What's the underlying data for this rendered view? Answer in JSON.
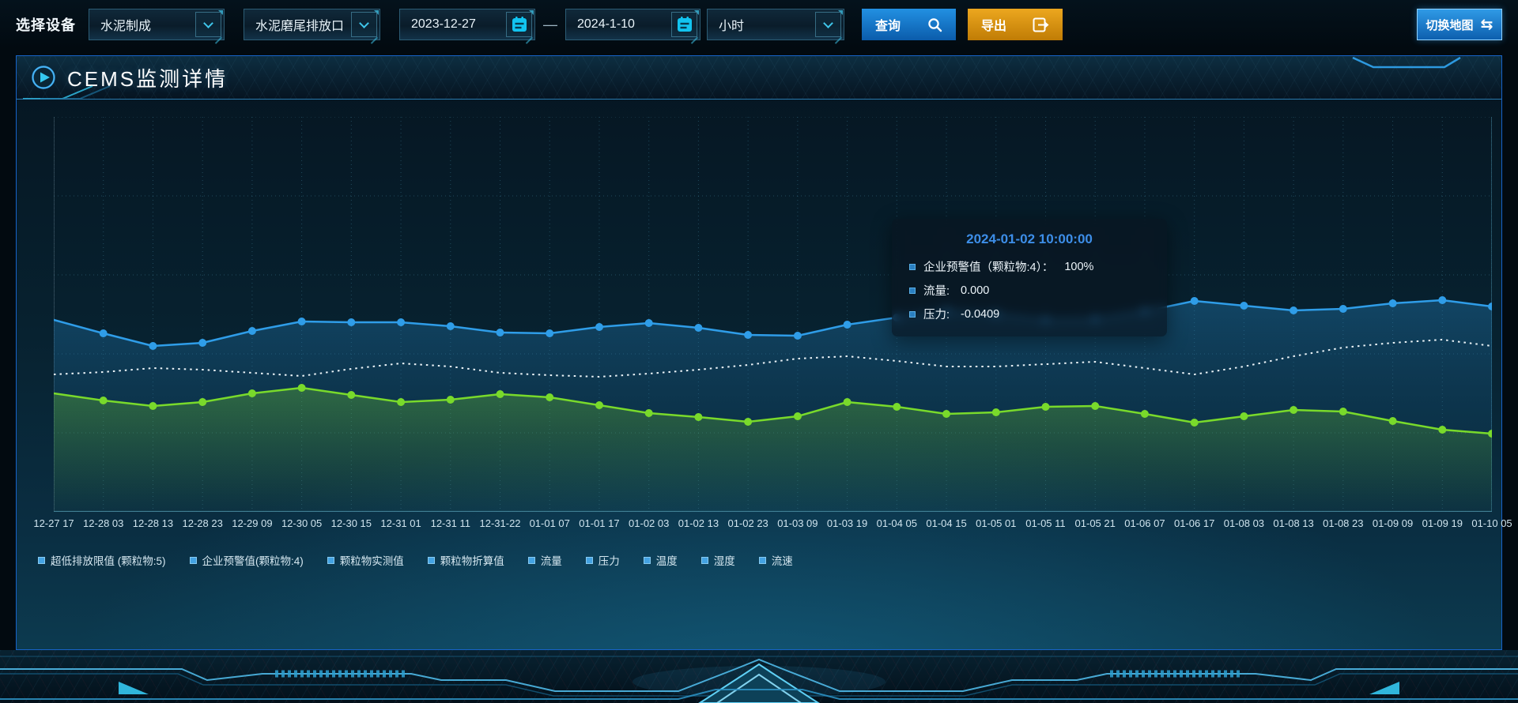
{
  "toolbar": {
    "device_label": "选择设备",
    "device_select": "水泥制成",
    "outlet_select": "水泥磨尾排放口",
    "date_start": "2023-12-27",
    "date_separator": "—",
    "date_end": "2024-1-10",
    "granularity_select": "小时",
    "query_label": "查询",
    "export_label": "导出",
    "map_toggle_label": "切换地图",
    "map_toggle_icon": "⇆"
  },
  "panel": {
    "title": "CEMS监测详情"
  },
  "tooltip": {
    "title": "2024-01-02 10:00:00",
    "accent_color": "#3d8ee8",
    "rows": [
      {
        "label": "企业预警值（颗粒物:4）：",
        "value": "100%"
      },
      {
        "label": "流量:",
        "value": "0.000"
      },
      {
        "label": "压力:",
        "value": "-0.0409"
      }
    ]
  },
  "legend": {
    "marker_color": "#44a3e3",
    "items": [
      "超低排放限值 (颗粒物:5)",
      "企业预警值(颗粒物:4)",
      "颗粒物实测值",
      "颗粒物折算值",
      "流量",
      "压力",
      "温度",
      "湿度",
      "流速"
    ]
  },
  "chart_data": {
    "type": "line",
    "grid": true,
    "y_axis_labels_visible": false,
    "x_labels": [
      "12-27 17",
      "12-28 03",
      "12-28 13",
      "12-28 23",
      "12-29 09",
      "12-30 05",
      "12-30 15",
      "12-31 01",
      "12-31 11",
      "12-31-22",
      "01-01 07",
      "01-01 17",
      "01-02 03",
      "01-02 13",
      "01-02 23",
      "01-03 09",
      "01-03 19",
      "01-04 05",
      "01-04 15",
      "01-05 01",
      "01-05 11",
      "01-05 21",
      "01-06 07",
      "01-06 17",
      "01-08 03",
      "01-08 13",
      "01-08 23",
      "01-09 09",
      "01-09 19",
      "01-10 05"
    ],
    "series": [
      {
        "name": "blue-line",
        "color": "#2f9de8",
        "style": "solid",
        "markers": true,
        "values_pct": [
          48.6,
          45.2,
          42.0,
          42.8,
          45.8,
          48.2,
          48.0,
          48.0,
          47.0,
          45.4,
          45.2,
          46.8,
          47.8,
          46.6,
          44.8,
          44.6,
          47.4,
          49.2,
          50.8,
          50.0,
          48.6,
          48.8,
          50.8,
          53.4,
          52.2,
          51.0,
          51.4,
          52.8,
          53.6,
          52.0
        ]
      },
      {
        "name": "white-dotted-line",
        "color": "#edf5f9",
        "style": "dotted",
        "markers": false,
        "values_pct": [
          34.8,
          35.4,
          36.4,
          36.0,
          35.2,
          34.4,
          36.2,
          37.6,
          36.8,
          35.2,
          34.6,
          34.2,
          35.0,
          36.0,
          37.2,
          38.8,
          39.4,
          38.2,
          36.8,
          36.8,
          37.4,
          38.0,
          36.4,
          34.8,
          36.8,
          39.4,
          41.6,
          42.8,
          43.6,
          42.0
        ]
      },
      {
        "name": "green-line",
        "color": "#79da2b",
        "style": "solid",
        "markers": true,
        "values_pct": [
          30.0,
          28.2,
          26.8,
          27.8,
          30.0,
          31.4,
          29.6,
          27.8,
          28.4,
          29.8,
          29.0,
          27.0,
          25.0,
          24.0,
          22.8,
          24.2,
          27.8,
          26.6,
          24.8,
          25.2,
          26.6,
          26.8,
          24.8,
          22.6,
          24.2,
          25.8,
          25.4,
          23.0,
          20.8,
          19.8
        ]
      }
    ]
  },
  "colors": {
    "accent_blue": "#2f9de8",
    "panel_border": "#1763c8",
    "button_blue": "#1180d6",
    "export_orange": "#d8921a",
    "grid_line": "#3b7991",
    "x_label": "#cfe4ee"
  }
}
